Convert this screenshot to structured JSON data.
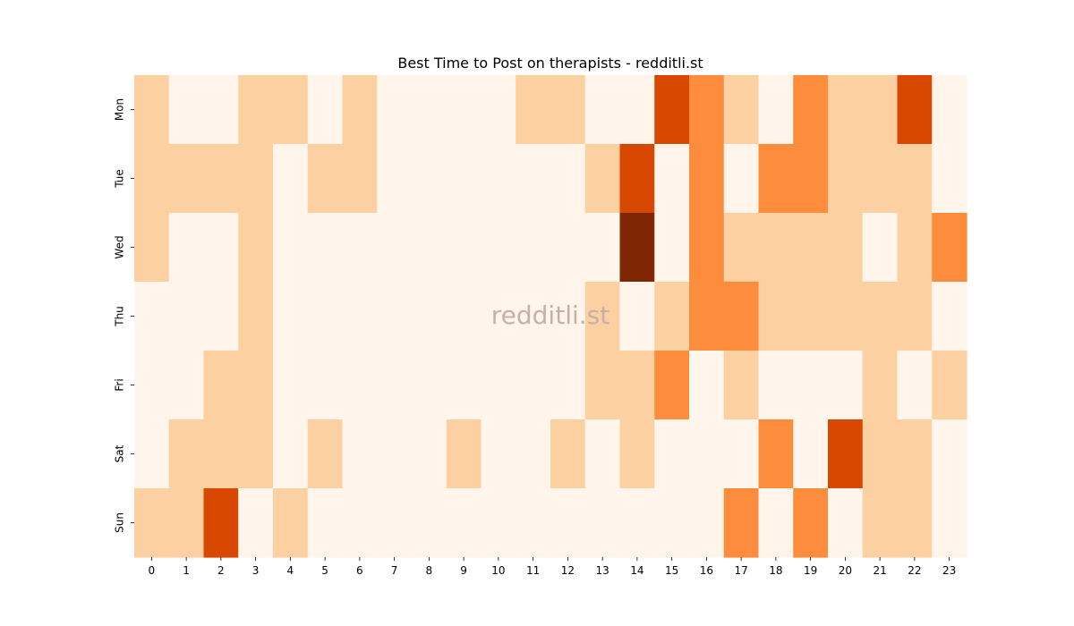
{
  "chart_data": {
    "type": "heatmap",
    "title": "Best Time to Post on therapists - redditli.st",
    "watermark": "redditli.st",
    "xlabel": "",
    "ylabel": "",
    "x_categories": [
      "0",
      "1",
      "2",
      "3",
      "4",
      "5",
      "6",
      "7",
      "8",
      "9",
      "10",
      "11",
      "12",
      "13",
      "14",
      "15",
      "16",
      "17",
      "18",
      "19",
      "20",
      "21",
      "22",
      "23"
    ],
    "y_categories": [
      "Mon",
      "Tue",
      "Wed",
      "Thu",
      "Fri",
      "Sat",
      "Sun"
    ],
    "values": [
      [
        1,
        0,
        0,
        1,
        1,
        0,
        1,
        0,
        0,
        0,
        0,
        1,
        1,
        0,
        0,
        3,
        2,
        1,
        0,
        2,
        1,
        1,
        3,
        0
      ],
      [
        1,
        1,
        1,
        1,
        0,
        1,
        1,
        0,
        0,
        0,
        0,
        0,
        0,
        1,
        3,
        0,
        2,
        0,
        2,
        2,
        1,
        1,
        1,
        0
      ],
      [
        1,
        0,
        0,
        1,
        0,
        0,
        0,
        0,
        0,
        0,
        0,
        0,
        0,
        0,
        4,
        0,
        2,
        1,
        1,
        1,
        1,
        0,
        1,
        2
      ],
      [
        0,
        0,
        0,
        1,
        0,
        0,
        0,
        0,
        0,
        0,
        0,
        0,
        0,
        1,
        0,
        1,
        2,
        2,
        1,
        1,
        1,
        1,
        1,
        0
      ],
      [
        0,
        0,
        1,
        1,
        0,
        0,
        0,
        0,
        0,
        0,
        0,
        0,
        0,
        1,
        1,
        2,
        0,
        1,
        0,
        0,
        0,
        1,
        0,
        1
      ],
      [
        0,
        1,
        1,
        1,
        0,
        1,
        0,
        0,
        0,
        1,
        0,
        0,
        1,
        0,
        1,
        0,
        0,
        0,
        2,
        0,
        3,
        1,
        1,
        0
      ],
      [
        1,
        1,
        3,
        0,
        1,
        0,
        0,
        0,
        0,
        0,
        0,
        0,
        0,
        0,
        0,
        0,
        0,
        2,
        0,
        2,
        0,
        1,
        1,
        0
      ]
    ],
    "value_range": [
      0,
      4
    ],
    "colormap": [
      "#fff5eb",
      "#fdd0a2",
      "#fd8d3c",
      "#d94801",
      "#7f2704"
    ],
    "legend": "none",
    "grid": false
  }
}
